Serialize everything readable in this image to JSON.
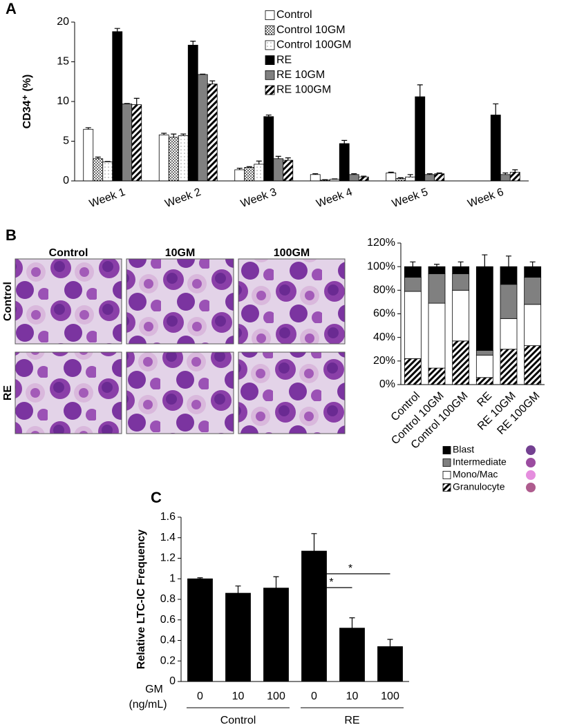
{
  "chart_data": [
    {
      "type": "bar",
      "panel": "A",
      "ylabel": "CD34⁺ (%)",
      "categories": [
        "Week 1",
        "Week 2",
        "Week 3",
        "Week 4",
        "Week 5",
        "Week 6"
      ],
      "ylim": [
        0,
        20
      ],
      "yticks": [
        0,
        5,
        10,
        15,
        20
      ],
      "series": [
        {
          "name": "Control",
          "color": "#ffffff",
          "values": [
            6.5,
            5.8,
            1.4,
            0.8,
            1.0,
            null
          ],
          "errors": [
            0.2,
            0.2,
            0.2,
            0.1,
            0.1,
            null
          ]
        },
        {
          "name": "Control 10GM",
          "color": "#ffffff",
          "pattern": "dots-dense",
          "values": [
            2.8,
            5.5,
            1.7,
            0.1,
            0.3,
            null
          ],
          "errors": [
            0.2,
            0.4,
            0.1,
            0.05,
            0.1,
            null
          ]
        },
        {
          "name": "Control 100GM",
          "color": "#ffffff",
          "pattern": "dots-sparse",
          "values": [
            2.4,
            5.7,
            2.1,
            0.2,
            0.5,
            null
          ],
          "errors": [
            0.05,
            0.2,
            0.4,
            0.05,
            0.3,
            null
          ]
        },
        {
          "name": "RE",
          "color": "#000000",
          "values": [
            18.8,
            17.1,
            8.1,
            4.7,
            10.6,
            8.3
          ],
          "errors": [
            0.4,
            0.5,
            0.2,
            0.4,
            1.5,
            1.4
          ]
        },
        {
          "name": "RE 10GM",
          "color": "#808080",
          "values": [
            9.7,
            13.4,
            2.8,
            0.8,
            0.8,
            0.8
          ],
          "errors": [
            0.05,
            0.05,
            0.3,
            0.1,
            0.1,
            0.2
          ]
        },
        {
          "name": "RE 100GM",
          "color": "#ffffff",
          "pattern": "hatch",
          "values": [
            9.6,
            12.2,
            2.6,
            0.5,
            0.9,
            1.1
          ],
          "errors": [
            0.8,
            0.4,
            0.3,
            0.1,
            0.1,
            0.3
          ]
        }
      ]
    },
    {
      "type": "stacked_bar",
      "panel": "B",
      "categories": [
        "Control",
        "Control 10GM",
        "Control 100GM",
        "RE",
        "RE 10GM",
        "RE 100GM"
      ],
      "ylim": [
        0,
        120
      ],
      "yticks": [
        {
          "value": 0,
          "label": "0%"
        },
        {
          "value": 20,
          "label": "20%"
        },
        {
          "value": 40,
          "label": "40%"
        },
        {
          "value": 60,
          "label": "60%"
        },
        {
          "value": 80,
          "label": "80%"
        },
        {
          "value": 100,
          "label": "100%"
        },
        {
          "value": 120,
          "label": "120%"
        }
      ],
      "series": [
        {
          "name": "Blast",
          "color": "#000000",
          "values": [
            9,
            6,
            6,
            71,
            15,
            9
          ],
          "errors": [
            4,
            2,
            4,
            10,
            9,
            4
          ]
        },
        {
          "name": "Intermediate",
          "color": "#808080",
          "values": [
            12,
            25,
            14,
            4,
            29,
            23
          ]
        },
        {
          "name": "Mono/Mac",
          "color": "#ffffff",
          "values": [
            57,
            55,
            43,
            19,
            26,
            35
          ],
          "errors": [
            null,
            6,
            2,
            1,
            2,
            2
          ]
        },
        {
          "name": "Granulocyte",
          "color": "#ffffff",
          "pattern": "hatch",
          "values": [
            22,
            14,
            37,
            6,
            30,
            33
          ],
          "errors": [
            7,
            8,
            7,
            1,
            10,
            4
          ]
        }
      ]
    },
    {
      "type": "bar",
      "panel": "C",
      "ylabel": "Relative LTC-IC Frequency",
      "xlabel": [
        "GM",
        "(ng/mL)"
      ],
      "categories": [
        "0",
        "10",
        "100",
        "0",
        "10",
        "100"
      ],
      "groups": [
        "Control",
        "RE"
      ],
      "values": [
        1,
        0.86,
        0.91,
        1.27,
        0.52,
        0.34
      ],
      "errors": [
        0.01,
        0.07,
        0.11,
        0.17,
        0.1,
        0.07
      ],
      "color": "#000000",
      "ylim": [
        0,
        1.6
      ],
      "yticks": [
        0,
        0.2,
        0.4,
        0.6,
        0.8,
        1,
        1.2,
        1.4,
        1.6
      ],
      "annotations": [
        "*",
        "*"
      ]
    }
  ],
  "micrographs": {
    "columns": [
      "Control",
      "10GM",
      "100GM"
    ],
    "rows": [
      "Control",
      "RE"
    ]
  }
}
